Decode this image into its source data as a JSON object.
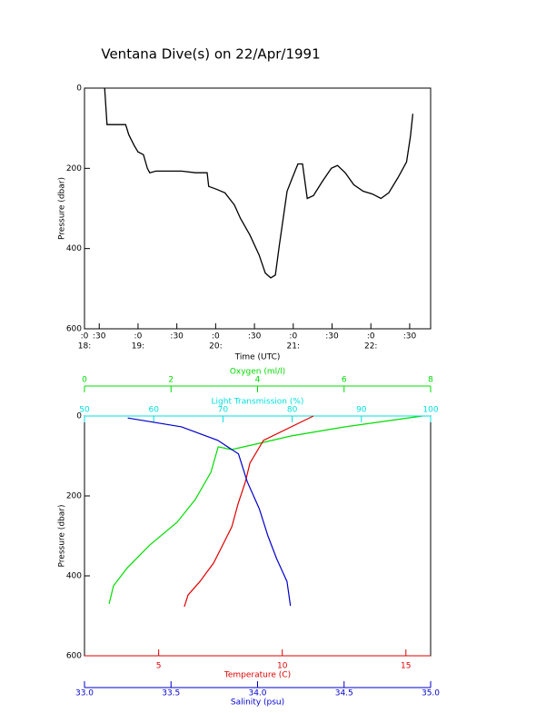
{
  "title": "Ventana Dive(s) on 22/Apr/1991",
  "chart_data": [
    {
      "type": "line",
      "xlabel": "Time (UTC)",
      "ylabel": "Pressure (dbar)",
      "color": "#000000",
      "x": [
        18.57,
        18.6,
        18.84,
        18.88,
        18.95,
        19.0,
        19.07,
        19.12,
        19.15,
        19.23,
        19.56,
        19.74,
        19.89,
        19.91,
        20.01,
        20.12,
        20.24,
        20.32,
        20.44,
        20.56,
        20.64,
        20.71,
        20.77,
        20.82,
        20.87,
        20.92,
        20.99,
        21.06,
        21.12,
        21.18,
        21.26,
        21.37,
        21.49,
        21.57,
        21.67,
        21.78,
        21.9,
        22.02,
        22.13,
        22.23,
        22.35,
        22.46,
        22.51,
        22.54
      ],
      "values": [
        0,
        91,
        91,
        116,
        143,
        159,
        166,
        200,
        211,
        207,
        207,
        211,
        211,
        245,
        252,
        261,
        291,
        325,
        366,
        416,
        461,
        473,
        466,
        393,
        325,
        257,
        223,
        189,
        189,
        275,
        268,
        234,
        200,
        193,
        211,
        241,
        257,
        264,
        275,
        261,
        223,
        184,
        120,
        64
      ],
      "xlim": [
        18.31,
        22.77
      ],
      "xticks": [
        {
          "value": 18.31,
          "label": ":0"
        },
        {
          "value": 18.5,
          "label": ":30"
        },
        {
          "value": 19,
          "label": ":0"
        },
        {
          "value": 19.5,
          "label": ":30"
        },
        {
          "value": 20,
          "label": ":0"
        },
        {
          "value": 20.5,
          "label": ":30"
        },
        {
          "value": 21,
          "label": ":0"
        },
        {
          "value": 21.5,
          "label": ":30"
        },
        {
          "value": 22,
          "label": ":0"
        },
        {
          "value": 22.5,
          "label": ":30"
        }
      ],
      "xticks_hours": [
        {
          "value": 18.31,
          "label": "18:"
        },
        {
          "value": 19,
          "label": "19:"
        },
        {
          "value": 20,
          "label": "20:"
        },
        {
          "value": 21,
          "label": "21:"
        },
        {
          "value": 22,
          "label": "22:"
        }
      ],
      "ylim": [
        0,
        600
      ],
      "y_inverted": true,
      "yticks": [
        0,
        200,
        400,
        600
      ]
    },
    {
      "type": "profile",
      "ylabel": "Pressure (dbar)",
      "ylim": [
        0,
        600
      ],
      "y_inverted": true,
      "yticks": [
        0,
        200,
        400,
        600
      ],
      "axes": [
        {
          "label": "Oxygen (ml/l)",
          "color": "#00dd00",
          "lim": [
            0,
            8
          ],
          "ticks": [
            0,
            2,
            4,
            6,
            8
          ],
          "x": [
            7.81,
            6.03,
            4.77,
            4.14,
            3.4,
            3.09,
            2.92,
            2.56,
            2.14,
            1.51,
            0.99,
            0.67,
            0.57
          ],
          "values": [
            0,
            27,
            50,
            66,
            84,
            77,
            141,
            209,
            266,
            323,
            380,
            425,
            470
          ]
        },
        {
          "label": "Light Transmission (%)",
          "color": "#00e0e0",
          "lim": [
            50,
            100
          ],
          "ticks": [
            50,
            60,
            70,
            80,
            90,
            100
          ]
        },
        {
          "label": "Temperature (C)",
          "color": "#e00000",
          "lim": [
            2,
            16
          ],
          "ticks": [
            5,
            10,
            15
          ],
          "x": [
            11.26,
            9.24,
            8.69,
            8.51,
            8.21,
            7.96,
            7.59,
            7.22,
            6.67,
            6.19,
            6.04
          ],
          "values": [
            0,
            61,
            118,
            164,
            220,
            277,
            323,
            368,
            414,
            448,
            477
          ]
        },
        {
          "label": "Salinity (psu)",
          "color": "#0000cc",
          "lim": [
            33,
            35
          ],
          "ticks": [
            {
              "value": 33,
              "label": "33.0"
            },
            {
              "value": 33.5,
              "label": "33.5"
            },
            {
              "value": 34,
              "label": "34.0"
            },
            {
              "value": 34.5,
              "label": "34.5"
            },
            {
              "value": 35,
              "label": "35.0"
            }
          ],
          "x": [
            33.25,
            33.56,
            33.77,
            33.89,
            33.94,
            34.01,
            34.06,
            34.11,
            34.17,
            34.19
          ],
          "values": [
            5,
            27,
            61,
            95,
            164,
            232,
            300,
            357,
            414,
            475
          ]
        }
      ]
    }
  ]
}
